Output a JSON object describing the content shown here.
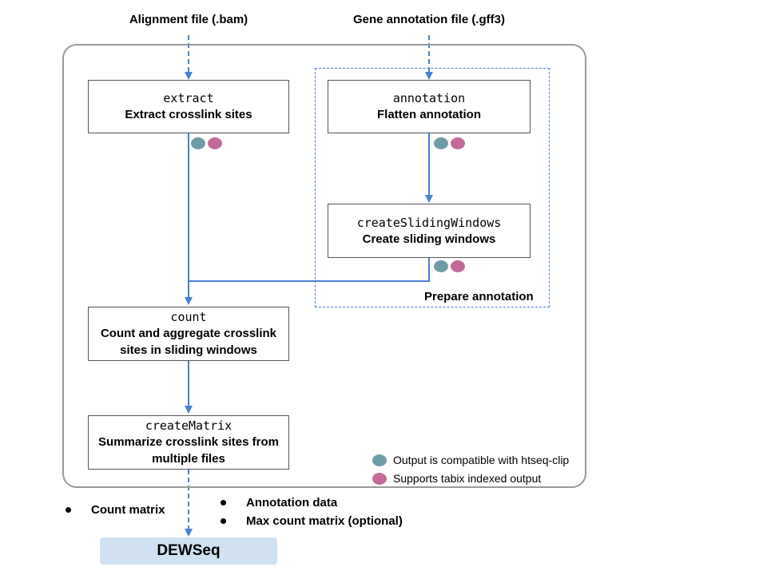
{
  "inputs": {
    "bam": "Alignment file (.bam)",
    "gff3": "Gene annotation file (.gff3)"
  },
  "steps": {
    "extract": {
      "command": "extract",
      "description": [
        "Extract crosslink sites"
      ]
    },
    "annotation": {
      "command": "annotation",
      "description": [
        "Flatten annotation"
      ]
    },
    "sliding": {
      "command": "createSlidingWindows",
      "description": [
        "Create sliding windows"
      ]
    },
    "count": {
      "command": "count",
      "description": [
        "Count and aggregate crosslink",
        "sites in sliding windows"
      ]
    },
    "matrix": {
      "command": "createMatrix",
      "description": [
        "Summarize crosslink sites from",
        "multiple files"
      ]
    }
  },
  "group_label": "Prepare annotation",
  "legend": {
    "teal": "Output is compatible with htseq-clip",
    "pink": "Supports tabix indexed output"
  },
  "outputs": {
    "left": [
      "Count matrix"
    ],
    "right": [
      "Annotation data",
      "Max count matrix (optional)"
    ]
  },
  "final": "DEWSeq",
  "colors": {
    "arrow": "#4a7fd4",
    "teal": "#6d9ba6",
    "pink": "#c4699a",
    "frame": "#9a9a9a",
    "final_bg": "#cfe1f3"
  }
}
